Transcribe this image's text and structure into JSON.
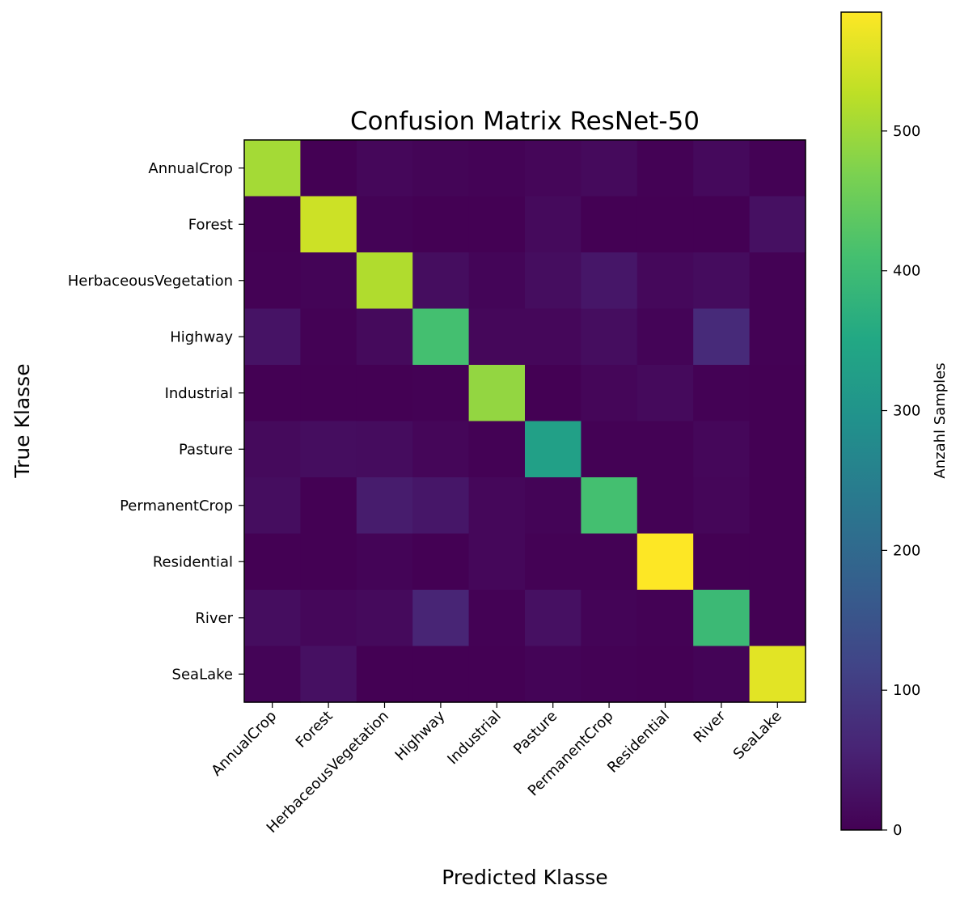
{
  "chart_data": {
    "type": "heatmap",
    "title": "Confusion Matrix ResNet-50",
    "xlabel": "Predicted Klasse",
    "ylabel": "True Klasse",
    "x_categories": [
      "AnnualCrop",
      "Forest",
      "HerbaceousVegetation",
      "Highway",
      "Industrial",
      "Pasture",
      "PermanentCrop",
      "Residential",
      "River",
      "SeaLake"
    ],
    "y_categories": [
      "AnnualCrop",
      "Forest",
      "HerbaceousVegetation",
      "Highway",
      "Industrial",
      "Pasture",
      "PermanentCrop",
      "Residential",
      "River",
      "SeaLake"
    ],
    "values": [
      [
        505,
        0,
        10,
        6,
        3,
        8,
        15,
        2,
        14,
        2
      ],
      [
        0,
        540,
        3,
        0,
        0,
        15,
        0,
        0,
        0,
        25
      ],
      [
        2,
        5,
        515,
        20,
        7,
        20,
        35,
        12,
        18,
        2
      ],
      [
        30,
        2,
        15,
        410,
        10,
        10,
        20,
        5,
        70,
        2
      ],
      [
        0,
        0,
        0,
        2,
        490,
        0,
        8,
        15,
        2,
        0
      ],
      [
        15,
        20,
        18,
        8,
        2,
        330,
        2,
        2,
        10,
        0
      ],
      [
        20,
        0,
        45,
        35,
        10,
        5,
        410,
        2,
        8,
        0
      ],
      [
        0,
        0,
        5,
        0,
        10,
        2,
        2,
        585,
        0,
        0
      ],
      [
        20,
        10,
        15,
        60,
        2,
        25,
        5,
        2,
        395,
        0
      ],
      [
        5,
        25,
        0,
        0,
        0,
        5,
        2,
        0,
        5,
        560
      ]
    ],
    "vmin": 0,
    "vmax": 585,
    "colormap": "viridis",
    "colorbar": {
      "label": "Anzahl Samples",
      "ticks": [
        0,
        100,
        200,
        300,
        400,
        500
      ]
    },
    "grid": false
  }
}
